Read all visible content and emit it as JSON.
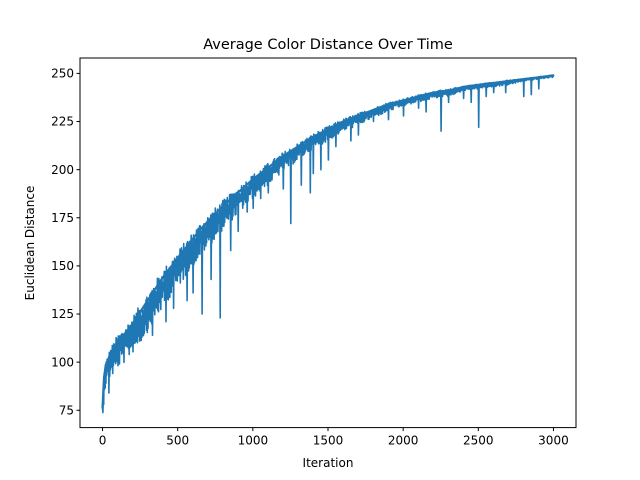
{
  "chart_data": {
    "type": "line",
    "title": "Average Color Distance Over Time",
    "xlabel": "Iteration",
    "ylabel": "Euclidean Distance",
    "xlim": [
      -150,
      3150
    ],
    "ylim": [
      66,
      258
    ],
    "xticks": [
      0,
      500,
      1000,
      1500,
      2000,
      2500,
      3000
    ],
    "yticks": [
      75,
      100,
      125,
      150,
      175,
      200,
      225,
      250
    ],
    "grid": false,
    "legend": "none",
    "series": [
      {
        "color": "#1f77b4",
        "x": [
          0,
          10,
          20,
          30,
          50,
          80,
          100,
          150,
          200,
          250,
          300,
          350,
          400,
          450,
          500,
          550,
          600,
          650,
          700,
          750,
          800,
          900,
          1000,
          1100,
          1200,
          1300,
          1400,
          1500,
          1600,
          1700,
          1800,
          1900,
          2000,
          2100,
          2200,
          2300,
          2400,
          2500,
          2600,
          2700,
          2800,
          2900,
          3000
        ],
        "y": [
          76,
          92,
          98,
          100,
          104,
          108,
          111,
          115,
          120,
          126,
          132,
          138,
          144,
          149,
          154,
          159,
          164,
          169,
          173,
          177,
          181,
          188,
          195,
          201,
          207,
          212,
          217,
          221,
          225,
          228,
          231,
          234,
          236,
          238,
          240,
          241,
          243,
          244,
          245,
          246,
          247,
          248,
          249
        ],
        "band": [
          4,
          8,
          10,
          10,
          12,
          14,
          14,
          15,
          15,
          16,
          16,
          16,
          16,
          15,
          15,
          15,
          14,
          14,
          13,
          13,
          12,
          11,
          10,
          9,
          8,
          7,
          6,
          6,
          5,
          5,
          4,
          4,
          3,
          3,
          3,
          3,
          2,
          2,
          2,
          2,
          1,
          1,
          1
        ],
        "dips": [
          [
            40,
            84
          ],
          [
            180,
            114
          ],
          [
            260,
            113
          ],
          [
            330,
            114
          ],
          [
            420,
            121
          ],
          [
            470,
            128
          ],
          [
            560,
            132
          ],
          [
            600,
            136
          ],
          [
            660,
            125
          ],
          [
            720,
            143
          ],
          [
            780,
            123
          ],
          [
            850,
            158
          ],
          [
            900,
            168
          ],
          [
            960,
            178
          ],
          [
            1000,
            180
          ],
          [
            1050,
            185
          ],
          [
            1100,
            188
          ],
          [
            1200,
            190
          ],
          [
            1250,
            172
          ],
          [
            1320,
            192
          ],
          [
            1380,
            188
          ],
          [
            1400,
            198
          ],
          [
            1450,
            200
          ],
          [
            1500,
            205
          ],
          [
            1550,
            212
          ],
          [
            1650,
            215
          ],
          [
            1700,
            218
          ],
          [
            1800,
            225
          ],
          [
            1900,
            226
          ],
          [
            2000,
            228
          ],
          [
            2100,
            232
          ],
          [
            2150,
            230
          ],
          [
            2250,
            220
          ],
          [
            2300,
            235
          ],
          [
            2400,
            237
          ],
          [
            2450,
            235
          ],
          [
            2500,
            222
          ],
          [
            2550,
            238
          ],
          [
            2600,
            240
          ],
          [
            2680,
            240
          ],
          [
            2800,
            238
          ],
          [
            2850,
            239
          ],
          [
            2900,
            242
          ]
        ]
      }
    ]
  }
}
